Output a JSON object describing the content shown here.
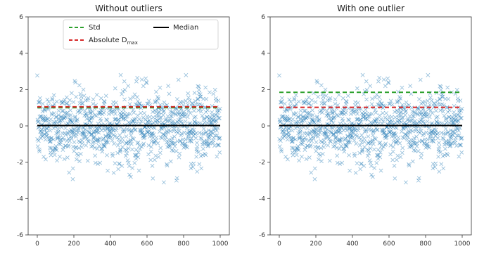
{
  "figure": {
    "colors": {
      "points": "#1f77b4",
      "std_line": "#2ca02c",
      "abs_line": "#d62728",
      "median_line": "#000000",
      "axis": "#333333"
    }
  },
  "chart_data": [
    {
      "type": "scatter",
      "title": "Without outliers",
      "xlabel": "",
      "ylabel": "",
      "xlim": [
        -50,
        1050
      ],
      "ylim": [
        -6,
        6
      ],
      "x_ticks": [
        0,
        200,
        400,
        600,
        800,
        1000
      ],
      "y_ticks": [
        -6,
        -4,
        -2,
        0,
        2,
        4,
        6
      ],
      "x_tick_labels": [
        "0",
        "200",
        "400",
        "600",
        "800",
        "1000"
      ],
      "y_tick_labels": [
        "-6",
        "-4",
        "-2",
        "0",
        "2",
        "4",
        "6"
      ],
      "grid": false,
      "legend": {
        "placement": "top",
        "entries": [
          {
            "label": "Std",
            "style": "dashed",
            "color": "#2ca02c"
          },
          {
            "label": "Median",
            "style": "solid",
            "color": "#000000"
          },
          {
            "label": "Absolute D",
            "subscript": "max",
            "style": "dashed",
            "color": "#d62728"
          }
        ]
      },
      "series": [
        {
          "kind": "points",
          "n": 1000,
          "x_range": [
            0,
            999
          ],
          "mean": 0.0,
          "sd": 1.0,
          "clip": [
            -3.2,
            2.8
          ],
          "marker": "x"
        },
        {
          "kind": "hline",
          "name": "Std",
          "y": 1.0,
          "style": "dashed",
          "color": "#2ca02c"
        },
        {
          "kind": "hline",
          "name": "Absolute D",
          "y": 1.05,
          "style": "dashed",
          "color": "#d62728"
        },
        {
          "kind": "hline",
          "name": "Median",
          "y": 0.02,
          "style": "solid",
          "color": "#000000"
        }
      ]
    },
    {
      "type": "scatter",
      "title": "With one outlier",
      "xlabel": "",
      "ylabel": "",
      "xlim": [
        -50,
        1050
      ],
      "ylim": [
        -6,
        6
      ],
      "x_ticks": [
        0,
        200,
        400,
        600,
        800,
        1000
      ],
      "y_ticks": [
        -6,
        -4,
        -2,
        0,
        2,
        4,
        6
      ],
      "x_tick_labels": [
        "0",
        "200",
        "400",
        "600",
        "800",
        "1000"
      ],
      "y_tick_labels": [
        "-6",
        "-4",
        "-2",
        "0",
        "2",
        "4",
        "6"
      ],
      "grid": false,
      "series": [
        {
          "kind": "points",
          "n": 1000,
          "x_range": [
            0,
            999
          ],
          "mean": 0.0,
          "sd": 1.0,
          "clip": [
            -3.2,
            2.8
          ],
          "marker": "x"
        },
        {
          "kind": "hline",
          "name": "Std",
          "y": 1.85,
          "style": "dashed",
          "color": "#2ca02c"
        },
        {
          "kind": "hline",
          "name": "Absolute D",
          "y": 1.02,
          "style": "dashed",
          "color": "#d62728"
        },
        {
          "kind": "hline",
          "name": "Median",
          "y": 0.02,
          "style": "solid",
          "color": "#000000"
        }
      ]
    }
  ]
}
